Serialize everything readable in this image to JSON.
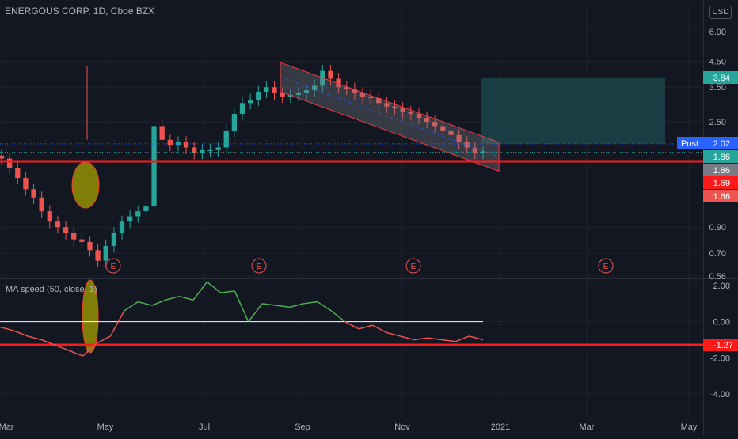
{
  "header": {
    "title": "ENERGOUS CORP, 1D, Cboe BZX",
    "currency": "USD"
  },
  "indicator": {
    "label": "MA speed (50, close, 1)"
  },
  "colors": {
    "bg": "#131722",
    "up": "#26a69a",
    "down": "#ef5350",
    "red": "#ff1a1a",
    "green_line": "#4caf50",
    "grid": "#1e222d"
  },
  "chart_data": [
    {
      "type": "candlestick",
      "title": "ENERGOUS CORP, 1D, Cboe BZX",
      "y_axis_ticks": [
        "6.00",
        "4.50",
        "3.50",
        "2.50",
        "1.86",
        "1.69",
        "1.66",
        "0.90",
        "0.70",
        "0.56"
      ],
      "scale": "log",
      "x_axis_ticks": [
        "Mar",
        "May",
        "Jul",
        "Sep",
        "Nov",
        "2021",
        "Mar",
        "May"
      ],
      "price_labels": [
        {
          "label": "",
          "value": "3.84",
          "color": "#26a69a"
        },
        {
          "label": "Post",
          "value": "2.02",
          "color": "#2962ff"
        },
        {
          "label": "",
          "value": "1.86",
          "color": "#26a69a"
        },
        {
          "label": "",
          "value": "1.86",
          "color": "#787b86"
        },
        {
          "label": "",
          "value": "1.69",
          "color": "#ff1a1a"
        },
        {
          "label": "",
          "value": "1.66",
          "color": "#ef5350"
        }
      ],
      "approx_closes": [
        1.75,
        1.6,
        1.45,
        1.3,
        1.2,
        1.05,
        0.95,
        0.9,
        0.85,
        0.8,
        0.78,
        0.72,
        0.65,
        0.75,
        0.85,
        0.95,
        1.0,
        1.05,
        1.1,
        2.4,
        2.1,
        2.0,
        2.05,
        1.95,
        1.85,
        1.9,
        1.9,
        1.95,
        2.3,
        2.7,
        3.0,
        3.1,
        3.35,
        3.5,
        3.3,
        3.2,
        3.25,
        3.3,
        3.4,
        3.55,
        4.1,
        3.8,
        3.5,
        3.45,
        3.3,
        3.2,
        3.15,
        3.0,
        2.9,
        2.85,
        2.75,
        2.7,
        2.6,
        2.5,
        2.4,
        2.3,
        2.2,
        2.05,
        1.95,
        1.85,
        1.88
      ],
      "channel": {
        "upper": [
          4.45,
          2.05
        ],
        "lower": [
          3.35,
          1.55
        ]
      },
      "horizontal_line": 1.69,
      "projection_box": {
        "top": 3.84,
        "bottom": 2.02
      },
      "earnings_markers": [
        "E",
        "E",
        "E",
        "E"
      ]
    },
    {
      "type": "line",
      "title": "MA speed (50, close, 1)",
      "y_axis_ticks": [
        "2.00",
        "0.00",
        "-2.00",
        "-4.00"
      ],
      "current_value": "-1.27",
      "approx_values": [
        -0.3,
        -0.5,
        -0.8,
        -1.0,
        -1.3,
        -1.6,
        -1.9,
        -1.2,
        -0.8,
        0.6,
        1.1,
        0.9,
        1.2,
        1.4,
        1.2,
        2.2,
        1.6,
        1.7,
        0.0,
        1.0,
        0.9,
        0.8,
        1.0,
        1.1,
        0.6,
        0.0,
        -0.4,
        -0.2,
        -0.6,
        -0.8,
        -1.0,
        -0.9,
        -1.0,
        -1.1,
        -0.8,
        -1.0
      ],
      "zero_line": 0.0,
      "horizontal_line": -1.27
    }
  ]
}
